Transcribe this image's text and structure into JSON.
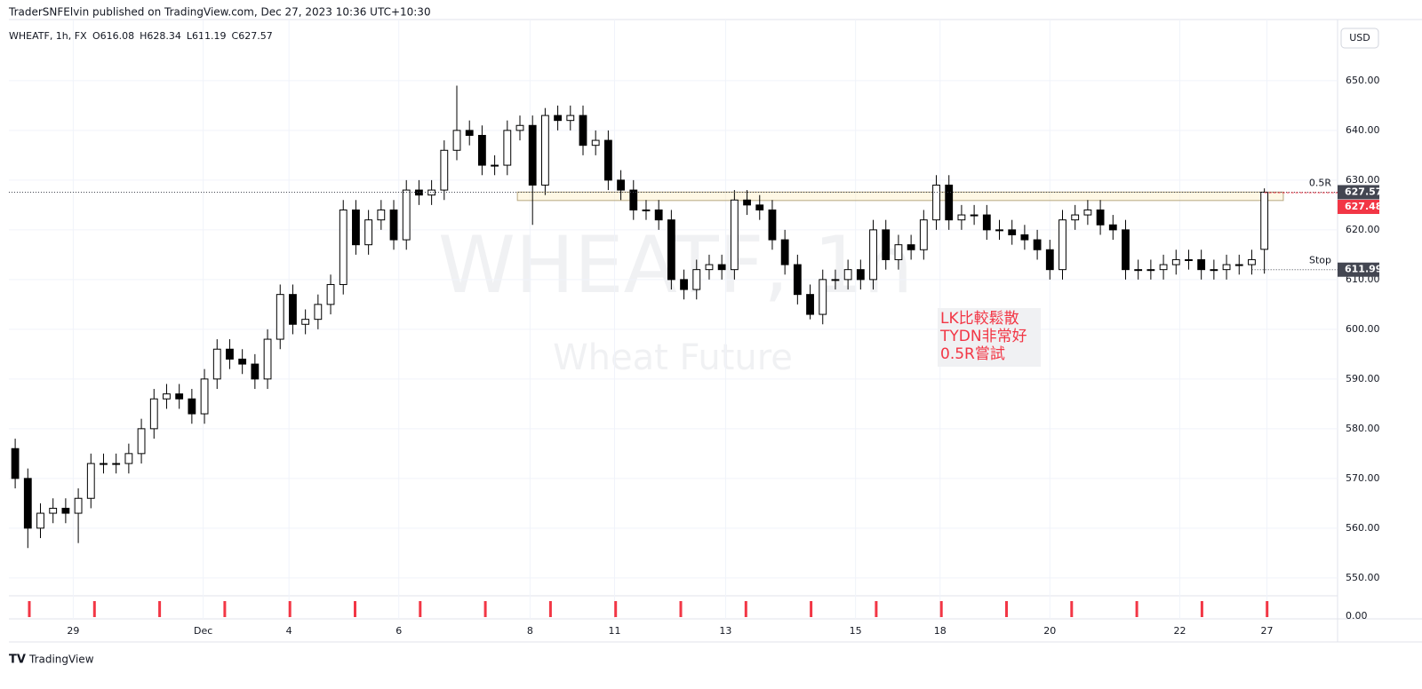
{
  "header": "TraderSNFElvin published on TradingView.com, Dec 27, 2023 10:36 UTC+10:30",
  "footer": "TradingView",
  "chart_data": {
    "type": "candlestick",
    "title": "WHEATF, 1h, FX",
    "ohlc_labels": [
      "O616.08",
      "H628.34",
      "L611.19",
      "C627.57"
    ],
    "watermark": "WHEATF, 1h",
    "subtitle": "Wheat Future",
    "currency": "USD",
    "up_color": "#ffffff",
    "down_color": "#000000",
    "wick_color": "#000000",
    "grid": true,
    "xlim": [
      -0.5,
      104.8
    ],
    "xticks": [
      {
        "value": 4.6,
        "label": "29"
      },
      {
        "value": 14.9,
        "label": "Dec"
      },
      {
        "value": 21.7,
        "label": "4"
      },
      {
        "value": 30.4,
        "label": "6"
      },
      {
        "value": 40.8,
        "label": "8"
      },
      {
        "value": 47.5,
        "label": "11"
      },
      {
        "value": 56.3,
        "label": "13"
      },
      {
        "value": 66.6,
        "label": "15"
      },
      {
        "value": 73.3,
        "label": "18"
      },
      {
        "value": 82.0,
        "label": "20"
      },
      {
        "value": 92.3,
        "label": "22"
      },
      {
        "value": 99.2,
        "label": "27"
      }
    ],
    "ylim": [
      546.4,
      662.3
    ],
    "yticks": [
      {
        "value": 550,
        "label": "550.00"
      },
      {
        "value": 560,
        "label": "560.00"
      },
      {
        "value": 570,
        "label": "570.00"
      },
      {
        "value": 580,
        "label": "580.00"
      },
      {
        "value": 590,
        "label": "590.00"
      },
      {
        "value": 600,
        "label": "600.00"
      },
      {
        "value": 610,
        "label": "610.00"
      },
      {
        "value": 620,
        "label": "620.00"
      },
      {
        "value": 630,
        "label": "630.00"
      },
      {
        "value": 640,
        "label": "640.00"
      },
      {
        "value": 650,
        "label": "650.00"
      }
    ],
    "volume_ticks": [
      {
        "value": 0,
        "label": "0.00"
      }
    ],
    "open": [
      576,
      570,
      560,
      563,
      564,
      563,
      566,
      573,
      573,
      573,
      575,
      580,
      586,
      587,
      586,
      583,
      590,
      596,
      594,
      593,
      590,
      598,
      607,
      601,
      602,
      605,
      609,
      624,
      617,
      622,
      624,
      618,
      628,
      627,
      628,
      636,
      640,
      639,
      633,
      633,
      640,
      641,
      629,
      643,
      642,
      643,
      637,
      638,
      630,
      628,
      624,
      624,
      622,
      610,
      608,
      612,
      613,
      612,
      626,
      625,
      624,
      618,
      613,
      607,
      603,
      610,
      610,
      612,
      610,
      620,
      614,
      617,
      616,
      622,
      629,
      622,
      623,
      623,
      620,
      620,
      619,
      618,
      616,
      612,
      622,
      623,
      624,
      621,
      620,
      612,
      612,
      612,
      613,
      614,
      614,
      612,
      612,
      613,
      613,
      616.08
    ],
    "high": [
      578,
      572,
      565,
      566,
      566,
      568,
      575,
      575,
      575,
      577,
      582,
      588,
      589,
      589,
      588,
      592,
      598,
      598,
      596,
      595,
      600,
      609,
      609,
      604,
      607,
      611,
      626,
      626,
      624,
      626,
      626,
      630,
      630,
      630,
      638,
      649,
      642,
      641,
      635,
      642,
      643,
      643,
      644.5,
      645,
      645,
      645,
      640,
      640,
      632,
      630,
      626,
      626,
      624,
      612,
      614,
      615,
      615,
      628,
      628,
      627,
      626,
      620,
      615,
      609,
      612,
      612,
      614,
      614,
      622,
      622,
      619,
      619,
      624,
      631,
      631,
      625,
      625,
      625,
      622,
      622,
      621,
      620,
      618,
      624,
      625,
      626,
      626,
      623,
      622,
      614,
      614,
      615,
      616,
      616,
      616,
      614,
      615,
      615,
      616,
      628.34
    ],
    "low": [
      568,
      556,
      558,
      561,
      561,
      557,
      564,
      571,
      571,
      571,
      573,
      578,
      584,
      584,
      581,
      581,
      588,
      592,
      591,
      588,
      588,
      596,
      599,
      599,
      600,
      603,
      607,
      615,
      615,
      620,
      616,
      616,
      625,
      625,
      626,
      634,
      637,
      631,
      631,
      631,
      638,
      621,
      627,
      640,
      640,
      635,
      635,
      628,
      626,
      622,
      622,
      620,
      608,
      606,
      606,
      610,
      610,
      610,
      623,
      622,
      616,
      611,
      605,
      602,
      601,
      608,
      608,
      608,
      608,
      612,
      612,
      614,
      614,
      620,
      620,
      620,
      621,
      618,
      618,
      617,
      616,
      614,
      610,
      610,
      620,
      621,
      619,
      618,
      610,
      610,
      610,
      610,
      611,
      612,
      610,
      610,
      610,
      611,
      611,
      611.19
    ],
    "close": [
      570,
      560,
      563,
      564,
      563,
      566,
      573,
      573,
      573,
      575,
      580,
      586,
      587,
      586,
      583,
      590,
      596,
      594,
      593,
      590,
      598,
      607,
      601,
      602,
      605,
      609,
      624,
      617,
      622,
      624,
      618,
      628,
      627,
      628,
      636,
      640,
      639,
      633,
      633,
      640,
      641,
      629,
      643,
      642,
      643,
      637,
      638,
      630,
      628,
      624,
      624,
      622,
      610,
      608,
      612,
      613,
      612,
      626,
      625,
      624,
      618,
      613,
      607,
      603,
      610,
      610,
      612,
      610,
      620,
      614,
      617,
      616,
      622,
      629,
      622,
      623,
      623,
      620,
      620,
      619,
      618,
      616,
      612,
      622,
      623,
      624,
      621,
      620,
      612,
      612,
      612,
      613,
      614,
      614,
      612,
      612,
      613,
      613,
      614,
      627.57
    ],
    "zone": {
      "low": 625.9,
      "high": 627.6,
      "xrange": [
        39.8,
        100.5
      ]
    },
    "levels": [
      {
        "name": "0.5R",
        "value": 627.57,
        "color": "#434651"
      },
      {
        "value": 627.48,
        "color": "#f23645"
      },
      {
        "name": "Stop",
        "value": 611.99,
        "color": "#434651"
      }
    ],
    "annotation": {
      "lines": [
        "LK比較鬆散",
        "TYDN非常好",
        "0.5R嘗試"
      ],
      "color": "#f23645"
    }
  }
}
